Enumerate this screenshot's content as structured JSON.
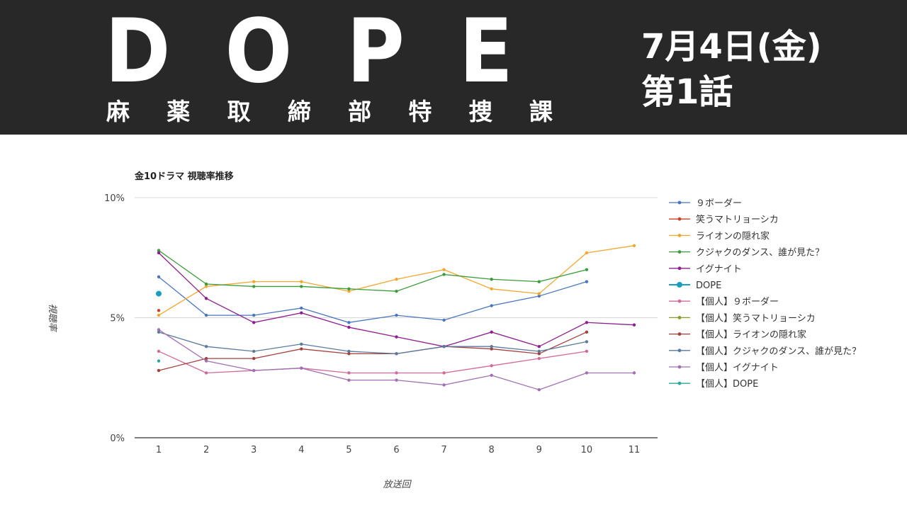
{
  "banner": {
    "title_letters": [
      "D",
      "O",
      "P",
      "E"
    ],
    "subtitle_chars": [
      "麻",
      "薬",
      "取",
      "締",
      "部",
      "特",
      "捜",
      "課"
    ],
    "date": "7月4日(金)",
    "episode": "第1話",
    "background": "#282828"
  },
  "chart_data": {
    "type": "line",
    "title": "金10ドラマ 視聴率推移",
    "xlabel": "放送回",
    "ylabel": "視聴率",
    "x": [
      1,
      2,
      3,
      4,
      5,
      6,
      7,
      8,
      9,
      10,
      11
    ],
    "xticks": [
      "1",
      "2",
      "3",
      "4",
      "5",
      "6",
      "7",
      "8",
      "9",
      "10",
      "11"
    ],
    "ylim": [
      0,
      10
    ],
    "yticks": [
      {
        "value": 0,
        "label": "0%"
      },
      {
        "value": 5,
        "label": "5%"
      },
      {
        "value": 10,
        "label": "10%"
      }
    ],
    "grid": true,
    "legend_position": "right",
    "series": [
      {
        "name": "９ボーダー",
        "color": "#4a76c0",
        "values": [
          6.7,
          5.1,
          5.1,
          5.4,
          4.8,
          5.1,
          4.9,
          5.5,
          5.9,
          6.5,
          null
        ]
      },
      {
        "name": "笑うマトリョーシカ",
        "color": "#c8412a",
        "values": [
          5.3,
          null,
          null,
          null,
          null,
          null,
          null,
          null,
          null,
          null,
          null
        ]
      },
      {
        "name": "ライオンの隠れ家",
        "color": "#f0a830",
        "values": [
          5.1,
          6.3,
          6.5,
          6.5,
          6.1,
          6.6,
          7.0,
          6.2,
          6.0,
          7.7,
          8.0
        ]
      },
      {
        "name": "クジャクのダンス、誰が見た？",
        "color": "#3c9c3c",
        "values": [
          7.8,
          6.4,
          6.3,
          6.3,
          6.2,
          6.1,
          6.8,
          6.6,
          6.5,
          7.0,
          null
        ]
      },
      {
        "name": "イグナイト",
        "color": "#8e1f8e",
        "values": [
          7.7,
          5.8,
          4.8,
          5.2,
          4.6,
          4.2,
          3.8,
          4.4,
          3.8,
          4.8,
          4.7
        ]
      },
      {
        "name": "DOPE",
        "color": "#1a9ec0",
        "values": [
          6.0,
          null,
          null,
          null,
          null,
          null,
          null,
          null,
          null,
          null,
          null
        ],
        "large": true
      },
      {
        "name": "【個人】９ボーダー",
        "color": "#d16a9a",
        "values": [
          3.6,
          2.7,
          2.8,
          2.9,
          2.7,
          2.7,
          2.7,
          3.0,
          3.3,
          3.6,
          null
        ]
      },
      {
        "name": "【個人】笑うマトリョーシカ",
        "color": "#8a9a2a",
        "values": [
          null,
          null,
          null,
          null,
          null,
          null,
          null,
          null,
          null,
          null,
          null
        ]
      },
      {
        "name": "【個人】ライオンの隠れ家",
        "color": "#a3403e",
        "values": [
          2.8,
          3.3,
          3.3,
          3.7,
          3.5,
          3.5,
          3.8,
          3.7,
          3.5,
          4.4,
          null
        ]
      },
      {
        "name": "【個人】クジャクのダンス、誰が見た？",
        "color": "#5a7a9e",
        "values": [
          4.4,
          3.8,
          3.6,
          3.9,
          3.6,
          3.5,
          3.8,
          3.8,
          3.6,
          4.0,
          null
        ]
      },
      {
        "name": "【個人】イグナイト",
        "color": "#a070b0",
        "values": [
          4.5,
          3.2,
          2.8,
          2.9,
          2.4,
          2.4,
          2.2,
          2.6,
          2.0,
          2.7,
          2.7
        ]
      },
      {
        "name": "【個人】DOPE",
        "color": "#2aa89a",
        "values": [
          3.2,
          null,
          null,
          null,
          null,
          null,
          null,
          null,
          null,
          null,
          null
        ]
      }
    ]
  }
}
